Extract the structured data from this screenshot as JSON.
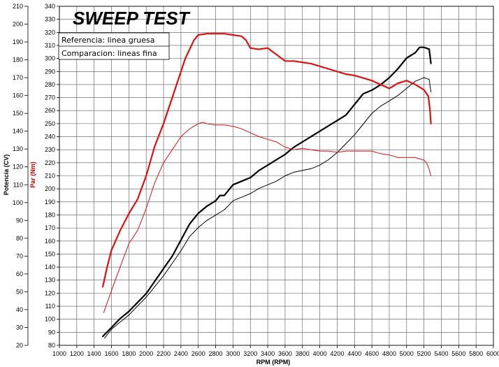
{
  "chart_data": {
    "type": "line",
    "title": "SWEEP TEST",
    "xlabel": "RPM (RPM)",
    "ylabel_left": "Potencia (CV)",
    "ylabel_right": "Par (Nm)",
    "xlim": [
      1000,
      6000
    ],
    "ylim_left": [
      20,
      210
    ],
    "ylim_right": [
      80,
      340
    ],
    "x_ticks": [
      "1000",
      "1200",
      "1400",
      "1600",
      "1800",
      "2000",
      "2200",
      "2400",
      "2600",
      "2800",
      "3000",
      "3200",
      "3400",
      "3600",
      "3800",
      "4000",
      "4200",
      "4400",
      "4600",
      "4800",
      "5000",
      "5200",
      "5400",
      "5600",
      "5800",
      "6000"
    ],
    "y_left_ticks": [
      "20",
      "30",
      "40",
      "50",
      "60",
      "70",
      "80",
      "90",
      "100",
      "110",
      "120",
      "130",
      "140",
      "150",
      "160",
      "170",
      "180",
      "190",
      "200",
      "210"
    ],
    "y_right_ticks": [
      "80",
      "90",
      "100",
      "110",
      "120",
      "130",
      "140",
      "150",
      "160",
      "170",
      "180",
      "190",
      "200",
      "210",
      "220",
      "230",
      "240",
      "250",
      "260",
      "270",
      "280",
      "290",
      "300",
      "310",
      "320",
      "330",
      "340"
    ],
    "legend": [
      "Referencia: linea gruesa",
      "Comparacion: lineas fina"
    ],
    "grid": true,
    "colors": {
      "power": "#000000",
      "torque": "#dd1111"
    },
    "series": [
      {
        "axis": "left",
        "line": "thick",
        "color": "#000000",
        "x": [
          1500,
          1600,
          1700,
          1800,
          1900,
          2000,
          2100,
          2200,
          2300,
          2400,
          2500,
          2600,
          2700,
          2800,
          2850,
          2900,
          3000,
          3100,
          3200,
          3300,
          3400,
          3500,
          3600,
          3700,
          3800,
          3900,
          4000,
          4100,
          4200,
          4300,
          4400,
          4500,
          4600,
          4700,
          4800,
          4900,
          5000,
          5100,
          5150,
          5200,
          5260,
          5280
        ],
        "y": [
          25,
          30,
          35,
          39,
          44,
          49,
          56,
          63,
          70,
          79,
          88,
          94,
          98,
          101,
          104,
          104,
          110,
          112,
          114,
          118,
          121,
          124,
          127,
          131,
          134,
          137,
          140,
          143,
          146,
          149,
          155,
          161,
          163,
          166,
          170,
          175,
          181,
          184,
          187,
          187,
          186,
          178
        ]
      },
      {
        "axis": "left",
        "line": "thin",
        "color": "#000000",
        "x": [
          1520,
          1600,
          1700,
          1800,
          1900,
          2000,
          2100,
          2200,
          2300,
          2400,
          2500,
          2600,
          2700,
          2800,
          2900,
          3000,
          3100,
          3200,
          3300,
          3400,
          3500,
          3600,
          3700,
          3800,
          3900,
          4000,
          4100,
          4200,
          4300,
          4400,
          4500,
          4600,
          4700,
          4800,
          4900,
          5000,
          5100,
          5150,
          5200,
          5260,
          5280
        ],
        "y": [
          24,
          29,
          33,
          37,
          42,
          47,
          53,
          59,
          66,
          73,
          81,
          86,
          90,
          93,
          96,
          101,
          103,
          105,
          108,
          110,
          112,
          115,
          117,
          118,
          119,
          121,
          124,
          128,
          133,
          138,
          144,
          150,
          154,
          157,
          160,
          164,
          168,
          169,
          170,
          169,
          162
        ]
      },
      {
        "axis": "right",
        "line": "thick",
        "color": "#dd1111",
        "x": [
          1500,
          1550,
          1600,
          1700,
          1800,
          1900,
          2000,
          2100,
          2200,
          2300,
          2400,
          2450,
          2500,
          2550,
          2600,
          2700,
          2800,
          2900,
          3000,
          3100,
          3150,
          3200,
          3300,
          3400,
          3500,
          3600,
          3700,
          3800,
          3900,
          4000,
          4100,
          4200,
          4300,
          4400,
          4500,
          4600,
          4700,
          4800,
          4900,
          5000,
          5100,
          5200,
          5250,
          5270,
          5280
        ],
        "y": [
          125,
          140,
          153,
          168,
          181,
          192,
          210,
          233,
          250,
          270,
          290,
          300,
          307,
          314,
          318,
          319,
          319,
          319,
          318,
          317,
          314,
          308,
          307,
          308,
          303,
          298,
          298,
          297,
          296,
          294,
          292,
          290,
          288,
          287,
          285,
          283,
          280,
          277,
          281,
          283,
          280,
          276,
          271,
          260,
          250
        ]
      },
      {
        "axis": "right",
        "line": "thin",
        "color": "#dd1111",
        "x": [
          1510,
          1600,
          1700,
          1800,
          1900,
          2000,
          2100,
          2200,
          2300,
          2400,
          2500,
          2600,
          2650,
          2700,
          2800,
          2900,
          3000,
          3100,
          3200,
          3300,
          3400,
          3500,
          3600,
          3700,
          3800,
          3900,
          4000,
          4100,
          4200,
          4300,
          4400,
          4500,
          4600,
          4700,
          4800,
          4900,
          5000,
          5100,
          5200,
          5230,
          5260,
          5280
        ],
        "y": [
          105,
          122,
          140,
          158,
          168,
          185,
          205,
          220,
          230,
          240,
          246,
          250,
          251,
          250,
          249,
          249,
          248,
          246,
          243,
          240,
          238,
          236,
          232,
          230,
          231,
          230,
          229,
          229,
          228,
          229,
          229,
          229,
          229,
          227,
          226,
          224,
          224,
          224,
          222,
          220,
          215,
          210
        ]
      }
    ]
  }
}
